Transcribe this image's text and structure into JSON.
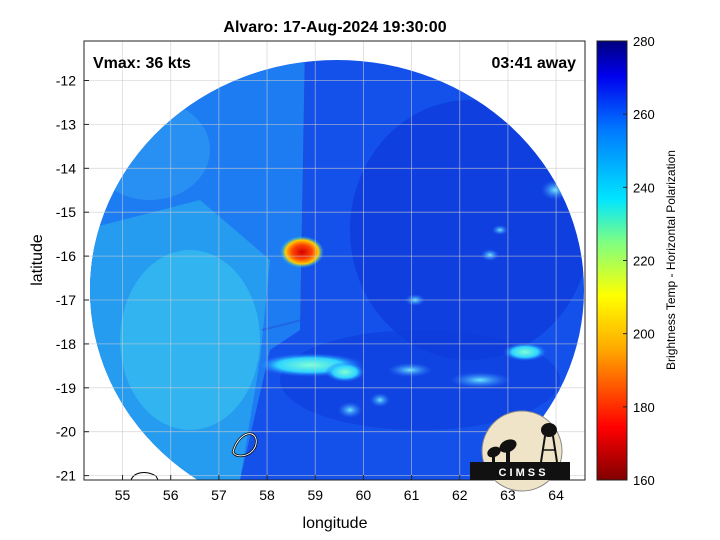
{
  "title": "Alvaro: 17-Aug-2024 19:30:00",
  "vmax_label": "Vmax: 36 kts",
  "away_label": "03:41 away",
  "xlabel": "longitude",
  "ylabel": "latitude",
  "x_ticks": [
    "55",
    "56",
    "57",
    "58",
    "59",
    "60",
    "61",
    "62",
    "63",
    "64"
  ],
  "y_ticks": [
    "-12",
    "-13",
    "-14",
    "-15",
    "-16",
    "-17",
    "-18",
    "-19",
    "-20",
    "-21"
  ],
  "colorbar": {
    "label": "Brightness Temp - Horizontal Polarization",
    "ticks": [
      "160",
      "180",
      "200",
      "220",
      "240",
      "260",
      "280"
    ],
    "range": [
      160,
      280
    ]
  },
  "logo": {
    "text": "C I M S S"
  },
  "chart_data": {
    "type": "heatmap",
    "title": "Alvaro: 17-Aug-2024 19:30:00",
    "xlabel": "longitude",
    "ylabel": "latitude",
    "xlim": [
      54.2,
      64.6
    ],
    "ylim": [
      -21.1,
      -11.1
    ],
    "color_range": [
      160,
      280
    ],
    "colorbar_label": "Brightness Temp - Horizontal Polarization",
    "grid": true,
    "annotations": [
      "Vmax: 36 kts",
      "03:41 away"
    ]
  }
}
